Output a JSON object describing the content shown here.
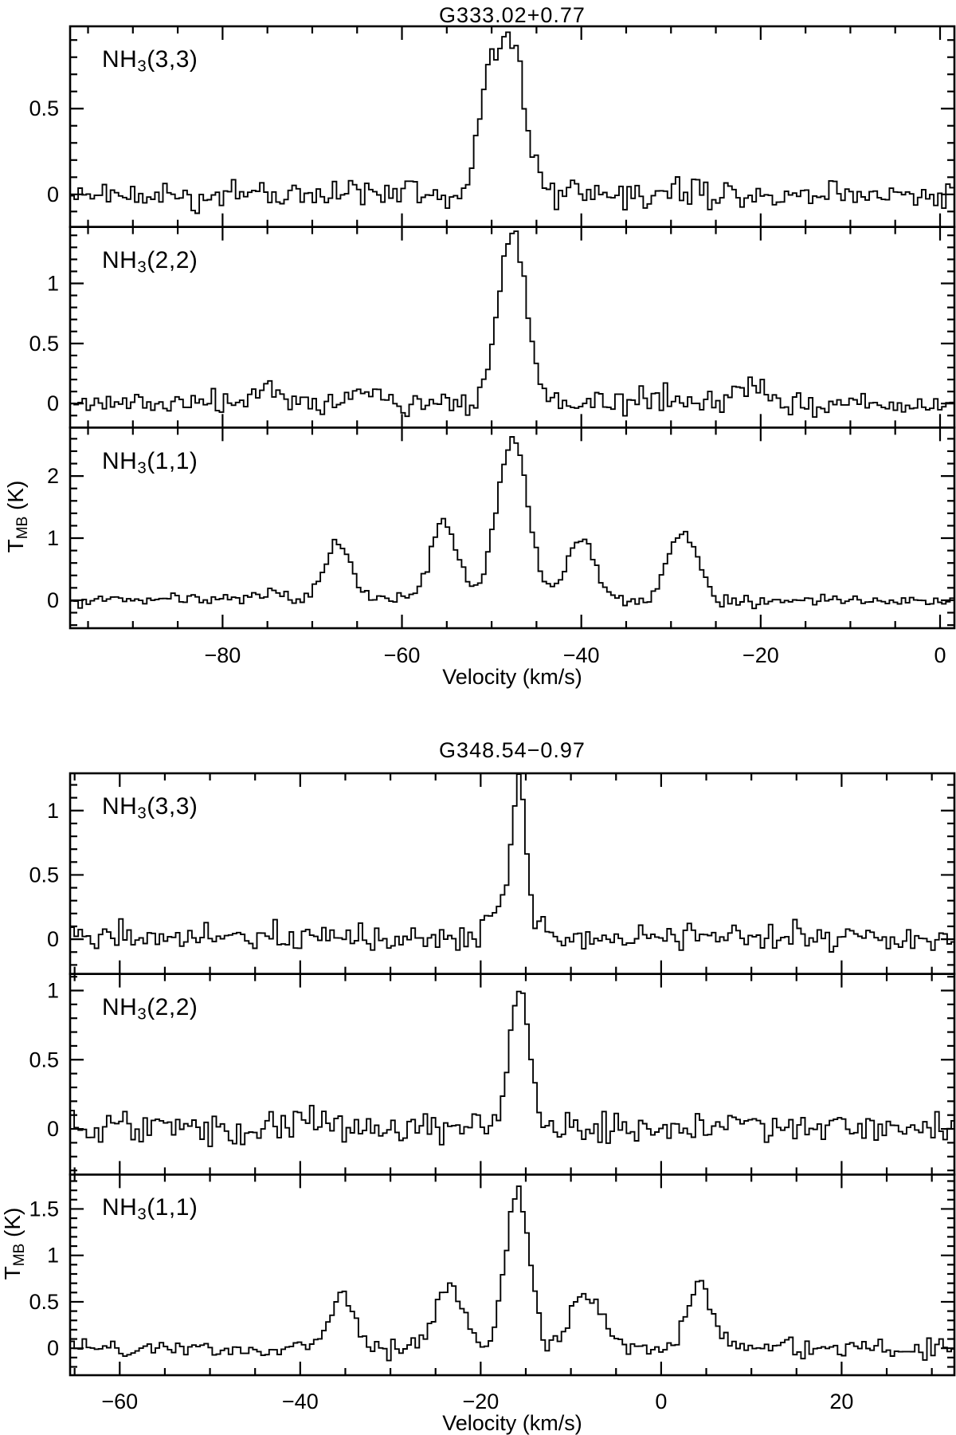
{
  "page": {
    "background": "#ffffff",
    "line_color": "#000000",
    "text_color": "#000000"
  },
  "chart_data": {
    "type": "line",
    "style": "step-histogram ammonia spectra, 3 stacked panels per source, black on white, no grid, no legend",
    "figures": [
      {
        "title": "G333.02+0.77",
        "xlabel": "Velocity (km/s)",
        "ylabel_parts": [
          {
            "t": "T"
          },
          {
            "t": "MB",
            "sub": true
          },
          {
            "t": " (K)"
          }
        ],
        "x_range": [
          -97.0,
          1.6
        ],
        "x_major_ticks": [
          {
            "v": -80,
            "label": "−80"
          },
          {
            "v": -60,
            "label": "−60"
          },
          {
            "v": -40,
            "label": "−40"
          },
          {
            "v": -20,
            "label": "−20"
          },
          {
            "v": 0,
            "label": "0"
          }
        ],
        "x_minor_step": 5,
        "channel_width_kms": 0.45,
        "panels": [
          {
            "id": "NH3(3,3)",
            "label_parts": [
              {
                "t": "NH"
              },
              {
                "t": "3",
                "sub": true
              },
              {
                "t": "(3,3)"
              }
            ],
            "ylim": [
              -0.19,
              0.98
            ],
            "y_major_ticks": [
              {
                "v": 0,
                "label": "0"
              },
              {
                "v": 0.5,
                "label": "0.5"
              }
            ],
            "y_minor_step": 0.1,
            "noise_rms_K": 0.042,
            "lines": [
              {
                "center_kms": -47.9,
                "peak_K": 0.95,
                "fwhm_kms": 3.6
              },
              {
                "center_kms": -50.5,
                "peak_K": 0.5,
                "fwhm_kms": 2.5
              }
            ]
          },
          {
            "id": "NH3(2,2)",
            "label_parts": [
              {
                "t": "NH"
              },
              {
                "t": "3",
                "sub": true
              },
              {
                "t": "(2,2)"
              }
            ],
            "ylim": [
              -0.2,
              1.47
            ],
            "y_major_ticks": [
              {
                "v": 0,
                "label": "0"
              },
              {
                "v": 0.5,
                "label": "0.5"
              },
              {
                "v": 1,
                "label": "1"
              }
            ],
            "y_minor_step": 0.1,
            "noise_rms_K": 0.05,
            "lines": [
              {
                "center_kms": -47.7,
                "peak_K": 1.4,
                "fwhm_kms": 3.8
              },
              {
                "center_kms": -75.3,
                "peak_K": 0.12,
                "fwhm_kms": 4.0
              },
              {
                "center_kms": -63.8,
                "peak_K": 0.1,
                "fwhm_kms": 3.0
              },
              {
                "center_kms": -31.2,
                "peak_K": 0.07,
                "fwhm_kms": 4.0
              },
              {
                "center_kms": -21.5,
                "peak_K": 0.16,
                "fwhm_kms": 3.5
              }
            ]
          },
          {
            "id": "NH3(1,1)",
            "label_parts": [
              {
                "t": "NH"
              },
              {
                "t": "3",
                "sub": true
              },
              {
                "t": "(1,1)"
              }
            ],
            "ylim": [
              -0.45,
              2.78
            ],
            "y_major_ticks": [
              {
                "v": 0,
                "label": "0"
              },
              {
                "v": 1,
                "label": "1"
              },
              {
                "v": 2,
                "label": "2"
              }
            ],
            "y_minor_step": 0.2,
            "noise_rms_K": 0.05,
            "lines": [
              {
                "center_kms": -74.5,
                "peak_K": 0.07,
                "fwhm_kms": 7.0
              },
              {
                "center_kms": -67.2,
                "peak_K": 0.9,
                "fwhm_kms": 3.4
              },
              {
                "center_kms": -55.3,
                "peak_K": 1.27,
                "fwhm_kms": 3.6
              },
              {
                "center_kms": -47.7,
                "peak_K": 2.6,
                "fwhm_kms": 4.0
              },
              {
                "center_kms": -40.1,
                "peak_K": 1.0,
                "fwhm_kms": 3.6
              },
              {
                "center_kms": -28.6,
                "peak_K": 1.1,
                "fwhm_kms": 3.9
              }
            ]
          }
        ]
      },
      {
        "title": "G348.54−0.97",
        "xlabel": "Velocity (km/s)",
        "ylabel_parts": [
          {
            "t": "T"
          },
          {
            "t": "MB",
            "sub": true
          },
          {
            "t": " (K)"
          }
        ],
        "x_range": [
          -65.5,
          32.5
        ],
        "x_major_ticks": [
          {
            "v": -60,
            "label": "−60"
          },
          {
            "v": -40,
            "label": "−40"
          },
          {
            "v": -20,
            "label": "−20"
          },
          {
            "v": 0,
            "label": "0"
          },
          {
            "v": 20,
            "label": "20"
          }
        ],
        "x_minor_step": 5,
        "channel_width_kms": 0.45,
        "panels": [
          {
            "id": "NH3(3,3)",
            "label_parts": [
              {
                "t": "NH"
              },
              {
                "t": "3",
                "sub": true
              },
              {
                "t": "(3,3)"
              }
            ],
            "ylim": [
              -0.27,
              1.29
            ],
            "y_major_ticks": [
              {
                "v": 0,
                "label": "0"
              },
              {
                "v": 0.5,
                "label": "0.5"
              },
              {
                "v": 1,
                "label": "1"
              }
            ],
            "y_minor_step": 0.1,
            "noise_rms_K": 0.05,
            "lines": [
              {
                "center_kms": -15.8,
                "peak_K": 1.02,
                "fwhm_kms": 1.6
              },
              {
                "center_kms": -16.3,
                "peak_K": 0.28,
                "fwhm_kms": 5.5
              }
            ]
          },
          {
            "id": "NH3(2,2)",
            "label_parts": [
              {
                "t": "NH"
              },
              {
                "t": "3",
                "sub": true
              },
              {
                "t": "(2,2)"
              }
            ],
            "ylim": [
              -0.33,
              1.12
            ],
            "y_major_ticks": [
              {
                "v": 0,
                "label": "0"
              },
              {
                "v": 0.5,
                "label": "0.5"
              },
              {
                "v": 1,
                "label": "1"
              }
            ],
            "y_minor_step": 0.1,
            "noise_rms_K": 0.055,
            "lines": [
              {
                "center_kms": -15.7,
                "peak_K": 1.05,
                "fwhm_kms": 2.6
              },
              {
                "center_kms": -40.0,
                "peak_K": 0.07,
                "fwhm_kms": 6.0
              },
              {
                "center_kms": 9.5,
                "peak_K": 0.06,
                "fwhm_kms": 4.0
              }
            ]
          },
          {
            "id": "NH3(1,1)",
            "label_parts": [
              {
                "t": "NH"
              },
              {
                "t": "3",
                "sub": true
              },
              {
                "t": "(1,1)"
              }
            ],
            "ylim": [
              -0.29,
              1.87
            ],
            "y_major_ticks": [
              {
                "v": 0,
                "label": "0"
              },
              {
                "v": 0.5,
                "label": "0.5"
              },
              {
                "v": 1,
                "label": "1"
              },
              {
                "v": 1.5,
                "label": "1.5"
              }
            ],
            "y_minor_step": 0.1,
            "noise_rms_K": 0.05,
            "lines": [
              {
                "center_kms": -35.4,
                "peak_K": 0.55,
                "fwhm_kms": 3.2
              },
              {
                "center_kms": -23.4,
                "peak_K": 0.66,
                "fwhm_kms": 3.6
              },
              {
                "center_kms": -15.9,
                "peak_K": 1.75,
                "fwhm_kms": 3.0
              },
              {
                "center_kms": -8.3,
                "peak_K": 0.62,
                "fwhm_kms": 3.6
              },
              {
                "center_kms": 4.3,
                "peak_K": 0.66,
                "fwhm_kms": 3.4
              }
            ]
          }
        ]
      }
    ]
  }
}
